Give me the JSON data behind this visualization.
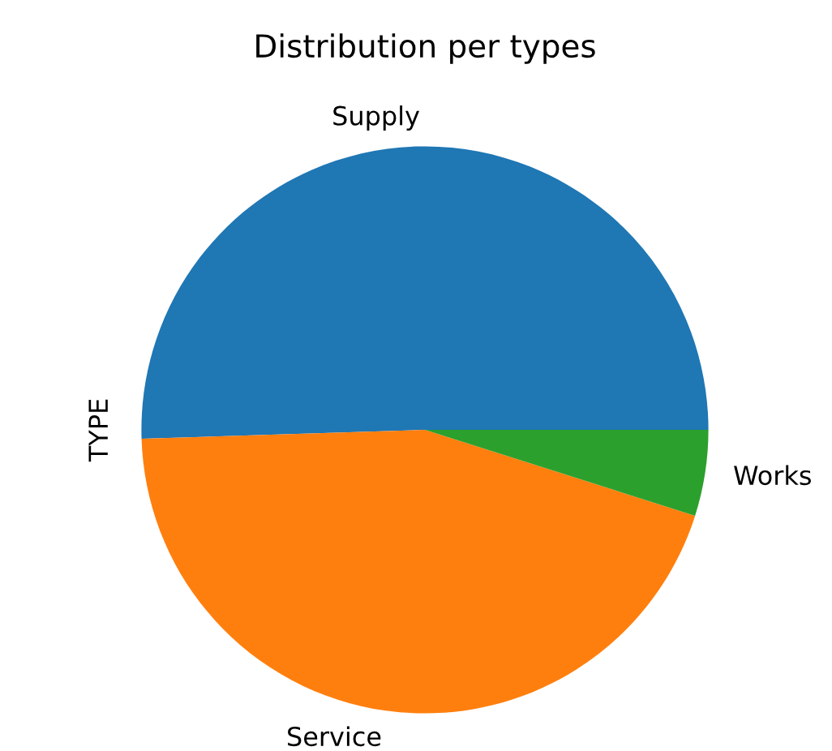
{
  "chart_data": {
    "type": "pie",
    "title": "Distribution per types",
    "ylabel": "TYPE",
    "categories": [
      "Supply",
      "Service",
      "Works"
    ],
    "values": [
      50.5,
      44.6,
      4.9
    ],
    "colors": [
      "#1f77b4",
      "#ff7f0e",
      "#2ca02c"
    ]
  }
}
